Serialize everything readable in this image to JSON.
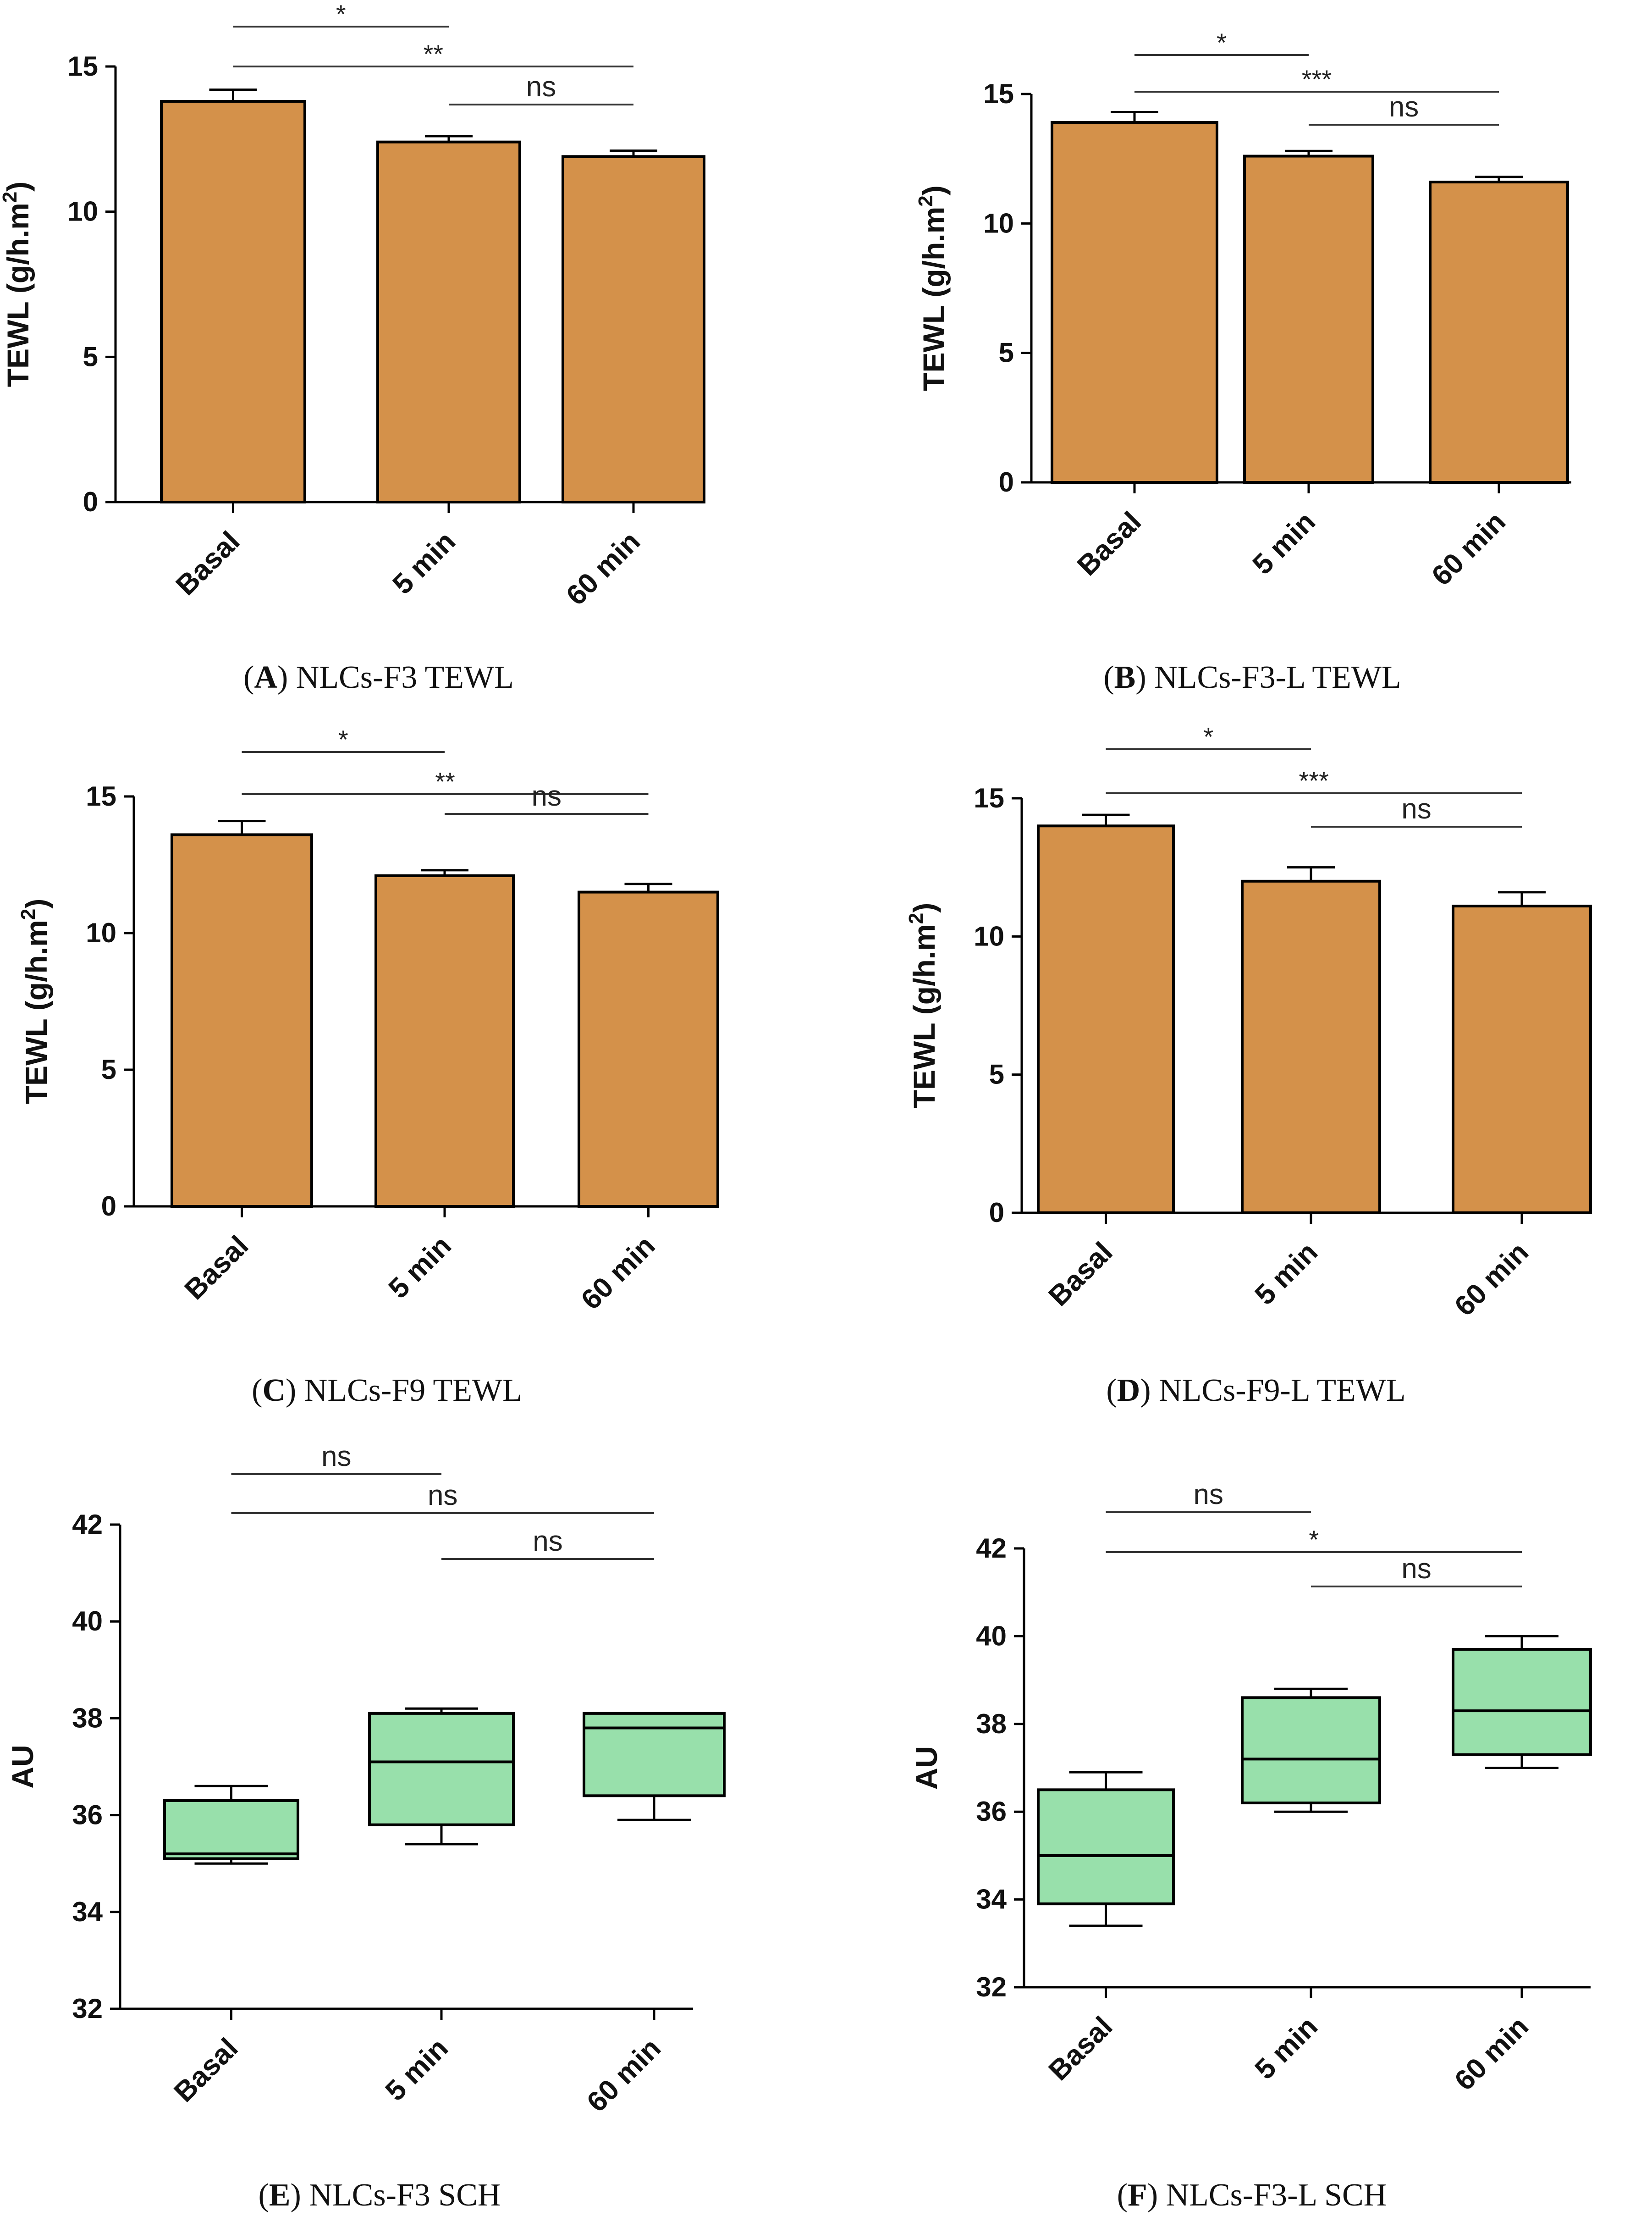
{
  "figure": {
    "panels": [
      {
        "letter": "A",
        "caption": " NLCs-F3 TEWL"
      },
      {
        "letter": "B",
        "caption": " NLCs-F3-L TEWL"
      },
      {
        "letter": "C",
        "caption": " NLCs-F9 TEWL"
      },
      {
        "letter": "D",
        "caption": " NLCs-F9-L TEWL"
      },
      {
        "letter": "E",
        "caption": " NLCs-F3 SCH"
      },
      {
        "letter": "F",
        "caption": " NLCs-F3-L SCH"
      }
    ]
  },
  "chart_data": [
    {
      "panel": "A",
      "type": "bar",
      "ylabel_main": "TEWL (g/h.m",
      "ylabel_sup": "2",
      "ylabel_close": ")",
      "categories": [
        "Basal",
        "5 min",
        "60 min"
      ],
      "values": [
        13.8,
        12.4,
        11.9
      ],
      "errors": [
        0.4,
        0.2,
        0.2
      ],
      "ylim": [
        0,
        15
      ],
      "yticks": [
        0,
        5,
        10,
        15
      ],
      "significance": [
        {
          "from": 0,
          "to": 1,
          "label": "*"
        },
        {
          "from": 0,
          "to": 2,
          "label": "**"
        },
        {
          "from": 1,
          "to": 2,
          "label": "ns"
        }
      ],
      "colors": {
        "fill": "#d4914a",
        "stroke": "#000000"
      }
    },
    {
      "panel": "B",
      "type": "bar",
      "ylabel_main": "TEWL (g/h.m",
      "ylabel_sup": "2",
      "ylabel_close": ")",
      "categories": [
        "Basal",
        "5 min",
        "60 min"
      ],
      "values": [
        13.9,
        12.6,
        11.6
      ],
      "errors": [
        0.4,
        0.2,
        0.2
      ],
      "ylim": [
        0,
        15
      ],
      "yticks": [
        0,
        5,
        10,
        15
      ],
      "significance": [
        {
          "from": 0,
          "to": 1,
          "label": "*"
        },
        {
          "from": 0,
          "to": 2,
          "label": "***"
        },
        {
          "from": 1,
          "to": 2,
          "label": "ns"
        }
      ],
      "colors": {
        "fill": "#d4914a",
        "stroke": "#000000"
      }
    },
    {
      "panel": "C",
      "type": "bar",
      "ylabel_main": "TEWL (g/h.m",
      "ylabel_sup": "2",
      "ylabel_close": ")",
      "categories": [
        "Basal",
        "5 min",
        "60 min"
      ],
      "values": [
        13.6,
        12.1,
        11.5
      ],
      "errors": [
        0.5,
        0.2,
        0.3
      ],
      "ylim": [
        0,
        15
      ],
      "yticks": [
        0,
        5,
        10,
        15
      ],
      "significance": [
        {
          "from": 0,
          "to": 1,
          "label": "*"
        },
        {
          "from": 0,
          "to": 2,
          "label": "**"
        },
        {
          "from": 1,
          "to": 2,
          "label": "ns"
        }
      ],
      "colors": {
        "fill": "#d4914a",
        "stroke": "#000000"
      }
    },
    {
      "panel": "D",
      "type": "bar",
      "ylabel_main": "TEWL (g/h.m",
      "ylabel_sup": "2",
      "ylabel_close": ")",
      "categories": [
        "Basal",
        "5 min",
        "60 min"
      ],
      "values": [
        14.0,
        12.0,
        11.1
      ],
      "errors": [
        0.4,
        0.5,
        0.5
      ],
      "ylim": [
        0,
        15
      ],
      "yticks": [
        0,
        5,
        10,
        15
      ],
      "significance": [
        {
          "from": 0,
          "to": 1,
          "label": "*"
        },
        {
          "from": 0,
          "to": 2,
          "label": "***"
        },
        {
          "from": 1,
          "to": 2,
          "label": "ns"
        }
      ],
      "colors": {
        "fill": "#d4914a",
        "stroke": "#000000"
      }
    },
    {
      "panel": "E",
      "type": "box",
      "ylabel_main": "AU",
      "ylabel_sup": "",
      "ylabel_close": "",
      "categories": [
        "Basal",
        "5 min",
        "60 min"
      ],
      "boxes": [
        {
          "min": 35.0,
          "q1": 35.1,
          "median": 35.2,
          "q3": 36.3,
          "max": 36.6
        },
        {
          "min": 35.4,
          "q1": 35.8,
          "median": 37.1,
          "q3": 38.1,
          "max": 38.2
        },
        {
          "min": 35.9,
          "q1": 36.4,
          "median": 37.8,
          "q3": 38.1,
          "max": 38.1
        }
      ],
      "ylim": [
        32,
        42
      ],
      "yticks": [
        32,
        34,
        36,
        38,
        40,
        42
      ],
      "significance": [
        {
          "from": 0,
          "to": 1,
          "label": "ns"
        },
        {
          "from": 0,
          "to": 2,
          "label": "ns"
        },
        {
          "from": 1,
          "to": 2,
          "label": "ns"
        }
      ],
      "colors": {
        "fill": "#98e0ab",
        "stroke": "#000000"
      }
    },
    {
      "panel": "F",
      "type": "box",
      "ylabel_main": "AU",
      "ylabel_sup": "",
      "ylabel_close": "",
      "categories": [
        "Basal",
        "5 min",
        "60 min"
      ],
      "boxes": [
        {
          "min": 33.4,
          "q1": 33.9,
          "median": 35.0,
          "q3": 36.5,
          "max": 36.9
        },
        {
          "min": 36.0,
          "q1": 36.2,
          "median": 37.2,
          "q3": 38.6,
          "max": 38.8
        },
        {
          "min": 37.0,
          "q1": 37.3,
          "median": 38.3,
          "q3": 39.7,
          "max": 40.0
        }
      ],
      "ylim": [
        32,
        42
      ],
      "yticks": [
        32,
        34,
        36,
        38,
        40,
        42
      ],
      "significance": [
        {
          "from": 0,
          "to": 1,
          "label": "ns"
        },
        {
          "from": 0,
          "to": 2,
          "label": "*"
        },
        {
          "from": 1,
          "to": 2,
          "label": "ns"
        }
      ],
      "colors": {
        "fill": "#98e0ab",
        "stroke": "#000000"
      }
    }
  ]
}
